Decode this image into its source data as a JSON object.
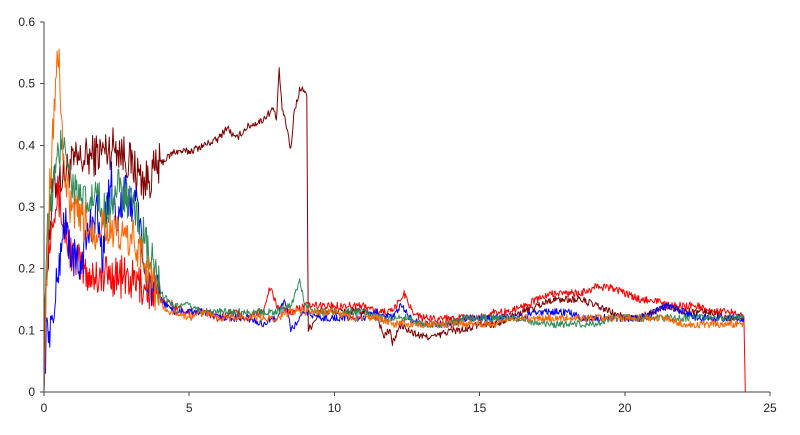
{
  "chart_data": {
    "type": "line",
    "title": "",
    "xlabel": "",
    "ylabel": "",
    "xlim": [
      0,
      25
    ],
    "ylim": [
      0,
      0.6
    ],
    "x_ticks": [
      0,
      5,
      10,
      15,
      20,
      25
    ],
    "y_ticks": [
      0,
      0.1,
      0.2,
      0.3,
      0.4,
      0.5,
      0.6
    ],
    "grid": false,
    "legend": "none",
    "series": [
      {
        "color": "#800000",
        "points": [
          [
            0,
            0.03
          ],
          [
            0.1,
            0.2
          ],
          [
            0.3,
            0.33
          ],
          [
            0.6,
            0.35
          ],
          [
            1.0,
            0.37
          ],
          [
            1.5,
            0.38
          ],
          [
            2.0,
            0.39
          ],
          [
            2.5,
            0.4
          ],
          [
            3.0,
            0.37
          ],
          [
            3.3,
            0.35
          ],
          [
            3.5,
            0.34
          ],
          [
            4.0,
            0.37
          ],
          [
            4.5,
            0.39
          ],
          [
            5.0,
            0.39
          ],
          [
            5.5,
            0.4
          ],
          [
            6.0,
            0.41
          ],
          [
            6.3,
            0.43
          ],
          [
            6.6,
            0.41
          ],
          [
            7.0,
            0.43
          ],
          [
            7.5,
            0.44
          ],
          [
            7.9,
            0.46
          ],
          [
            8.0,
            0.44
          ],
          [
            8.1,
            0.52
          ],
          [
            8.2,
            0.46
          ],
          [
            8.4,
            0.42
          ],
          [
            8.5,
            0.39
          ],
          [
            8.6,
            0.45
          ],
          [
            8.8,
            0.49
          ],
          [
            9.0,
            0.49
          ],
          [
            9.05,
            0.48
          ],
          [
            9.1,
            0.1
          ],
          [
            9.5,
            0.13
          ],
          [
            10.0,
            0.13
          ],
          [
            10.5,
            0.13
          ],
          [
            11.0,
            0.13
          ],
          [
            11.5,
            0.12
          ],
          [
            11.7,
            0.09
          ],
          [
            11.9,
            0.1
          ],
          [
            12.0,
            0.08
          ],
          [
            12.3,
            0.11
          ],
          [
            12.5,
            0.1
          ],
          [
            13.0,
            0.09
          ],
          [
            13.5,
            0.09
          ],
          [
            14.0,
            0.1
          ],
          [
            14.5,
            0.1
          ],
          [
            15.0,
            0.11
          ],
          [
            15.5,
            0.11
          ],
          [
            16.0,
            0.12
          ],
          [
            16.5,
            0.13
          ],
          [
            17.0,
            0.14
          ],
          [
            17.5,
            0.15
          ],
          [
            18.0,
            0.15
          ],
          [
            18.5,
            0.15
          ],
          [
            19.0,
            0.14
          ],
          [
            19.5,
            0.13
          ],
          [
            20.0,
            0.12
          ],
          [
            20.5,
            0.12
          ],
          [
            21.0,
            0.13
          ],
          [
            21.5,
            0.14
          ],
          [
            22.0,
            0.13
          ],
          [
            22.5,
            0.13
          ],
          [
            23.0,
            0.13
          ],
          [
            23.5,
            0.12
          ],
          [
            24.1,
            0.12
          ]
        ]
      },
      {
        "color": "#ff0000",
        "points": [
          [
            0,
            0.1
          ],
          [
            0.1,
            0.2
          ],
          [
            0.3,
            0.3
          ],
          [
            0.5,
            0.32
          ],
          [
            0.7,
            0.26
          ],
          [
            1.0,
            0.22
          ],
          [
            1.3,
            0.2
          ],
          [
            1.6,
            0.19
          ],
          [
            2.0,
            0.19
          ],
          [
            2.5,
            0.19
          ],
          [
            3.0,
            0.18
          ],
          [
            3.5,
            0.17
          ],
          [
            4.0,
            0.15
          ],
          [
            4.5,
            0.14
          ],
          [
            5.0,
            0.13
          ],
          [
            5.5,
            0.13
          ],
          [
            6.0,
            0.12
          ],
          [
            6.5,
            0.13
          ],
          [
            7.0,
            0.12
          ],
          [
            7.5,
            0.13
          ],
          [
            7.8,
            0.17
          ],
          [
            8.0,
            0.14
          ],
          [
            8.5,
            0.13
          ],
          [
            9.0,
            0.14
          ],
          [
            9.5,
            0.14
          ],
          [
            10.0,
            0.14
          ],
          [
            10.5,
            0.14
          ],
          [
            11.0,
            0.14
          ],
          [
            11.5,
            0.13
          ],
          [
            12.0,
            0.13
          ],
          [
            12.4,
            0.16
          ],
          [
            12.7,
            0.13
          ],
          [
            13.0,
            0.12
          ],
          [
            13.5,
            0.12
          ],
          [
            14.0,
            0.12
          ],
          [
            14.5,
            0.12
          ],
          [
            15.0,
            0.12
          ],
          [
            15.5,
            0.13
          ],
          [
            16.0,
            0.13
          ],
          [
            16.5,
            0.14
          ],
          [
            17.0,
            0.15
          ],
          [
            17.5,
            0.16
          ],
          [
            18.0,
            0.16
          ],
          [
            18.5,
            0.16
          ],
          [
            19.0,
            0.17
          ],
          [
            19.5,
            0.17
          ],
          [
            20.0,
            0.16
          ],
          [
            20.5,
            0.15
          ],
          [
            21.0,
            0.15
          ],
          [
            21.5,
            0.14
          ],
          [
            22.0,
            0.14
          ],
          [
            22.5,
            0.14
          ],
          [
            23.0,
            0.13
          ],
          [
            23.5,
            0.13
          ],
          [
            24.0,
            0.13
          ],
          [
            24.1,
            0.12
          ],
          [
            24.15,
            0.0
          ]
        ]
      },
      {
        "color": "#0000ff",
        "points": [
          [
            0,
            0.03
          ],
          [
            0.1,
            0.1
          ],
          [
            0.3,
            0.11
          ],
          [
            0.5,
            0.2
          ],
          [
            0.7,
            0.28
          ],
          [
            0.9,
            0.23
          ],
          [
            1.2,
            0.2
          ],
          [
            1.5,
            0.25
          ],
          [
            1.8,
            0.3
          ],
          [
            2.0,
            0.22
          ],
          [
            2.3,
            0.35
          ],
          [
            2.5,
            0.28
          ],
          [
            2.8,
            0.32
          ],
          [
            3.0,
            0.3
          ],
          [
            3.2,
            0.33
          ],
          [
            3.4,
            0.2
          ],
          [
            3.6,
            0.18
          ],
          [
            4.0,
            0.15
          ],
          [
            4.5,
            0.13
          ],
          [
            5.0,
            0.13
          ],
          [
            5.5,
            0.13
          ],
          [
            6.0,
            0.12
          ],
          [
            6.5,
            0.12
          ],
          [
            7.0,
            0.12
          ],
          [
            7.5,
            0.11
          ],
          [
            8.0,
            0.12
          ],
          [
            8.3,
            0.15
          ],
          [
            8.5,
            0.1
          ],
          [
            9.0,
            0.13
          ],
          [
            9.5,
            0.12
          ],
          [
            10.0,
            0.12
          ],
          [
            10.5,
            0.12
          ],
          [
            11.0,
            0.12
          ],
          [
            11.5,
            0.13
          ],
          [
            12.0,
            0.12
          ],
          [
            12.3,
            0.14
          ],
          [
            12.6,
            0.12
          ],
          [
            13.0,
            0.11
          ],
          [
            13.5,
            0.11
          ],
          [
            14.0,
            0.11
          ],
          [
            14.5,
            0.12
          ],
          [
            15.0,
            0.12
          ],
          [
            15.5,
            0.12
          ],
          [
            16.0,
            0.12
          ],
          [
            16.5,
            0.12
          ],
          [
            17.0,
            0.13
          ],
          [
            17.5,
            0.13
          ],
          [
            18.0,
            0.13
          ],
          [
            18.5,
            0.12
          ],
          [
            19.0,
            0.12
          ],
          [
            19.5,
            0.12
          ],
          [
            20.0,
            0.12
          ],
          [
            20.5,
            0.12
          ],
          [
            21.0,
            0.13
          ],
          [
            21.5,
            0.14
          ],
          [
            22.0,
            0.13
          ],
          [
            22.5,
            0.12
          ],
          [
            23.0,
            0.12
          ],
          [
            23.5,
            0.12
          ],
          [
            24.1,
            0.12
          ]
        ]
      },
      {
        "color": "#2e8b57",
        "points": [
          [
            0,
            0.1
          ],
          [
            0.1,
            0.25
          ],
          [
            0.3,
            0.33
          ],
          [
            0.5,
            0.38
          ],
          [
            0.7,
            0.42
          ],
          [
            0.9,
            0.35
          ],
          [
            1.2,
            0.31
          ],
          [
            1.5,
            0.3
          ],
          [
            1.8,
            0.32
          ],
          [
            2.0,
            0.29
          ],
          [
            2.3,
            0.31
          ],
          [
            2.6,
            0.33
          ],
          [
            3.0,
            0.3
          ],
          [
            3.3,
            0.27
          ],
          [
            3.6,
            0.22
          ],
          [
            3.8,
            0.2
          ],
          [
            4.0,
            0.16
          ],
          [
            4.5,
            0.14
          ],
          [
            5.0,
            0.14
          ],
          [
            5.5,
            0.13
          ],
          [
            6.0,
            0.13
          ],
          [
            6.5,
            0.13
          ],
          [
            7.0,
            0.13
          ],
          [
            7.5,
            0.13
          ],
          [
            8.0,
            0.13
          ],
          [
            8.5,
            0.14
          ],
          [
            8.8,
            0.18
          ],
          [
            9.0,
            0.14
          ],
          [
            9.5,
            0.13
          ],
          [
            10.0,
            0.13
          ],
          [
            10.5,
            0.13
          ],
          [
            11.0,
            0.13
          ],
          [
            11.5,
            0.12
          ],
          [
            12.0,
            0.12
          ],
          [
            12.5,
            0.12
          ],
          [
            13.0,
            0.11
          ],
          [
            13.5,
            0.11
          ],
          [
            14.0,
            0.11
          ],
          [
            14.5,
            0.12
          ],
          [
            15.0,
            0.12
          ],
          [
            15.5,
            0.12
          ],
          [
            16.0,
            0.12
          ],
          [
            16.5,
            0.12
          ],
          [
            17.0,
            0.11
          ],
          [
            17.5,
            0.11
          ],
          [
            18.0,
            0.11
          ],
          [
            18.5,
            0.11
          ],
          [
            19.0,
            0.11
          ],
          [
            19.5,
            0.12
          ],
          [
            20.0,
            0.12
          ],
          [
            20.5,
            0.12
          ],
          [
            21.0,
            0.12
          ],
          [
            21.5,
            0.12
          ],
          [
            22.0,
            0.12
          ],
          [
            22.5,
            0.12
          ],
          [
            23.0,
            0.12
          ],
          [
            23.5,
            0.12
          ],
          [
            24.1,
            0.12
          ]
        ]
      },
      {
        "color": "#ff6600",
        "points": [
          [
            0,
            0.0
          ],
          [
            0.05,
            0.1
          ],
          [
            0.15,
            0.3
          ],
          [
            0.3,
            0.42
          ],
          [
            0.4,
            0.5
          ],
          [
            0.5,
            0.55
          ],
          [
            0.6,
            0.45
          ],
          [
            0.7,
            0.35
          ],
          [
            0.9,
            0.3
          ],
          [
            1.2,
            0.28
          ],
          [
            1.5,
            0.27
          ],
          [
            1.8,
            0.26
          ],
          [
            2.0,
            0.28
          ],
          [
            2.3,
            0.26
          ],
          [
            2.6,
            0.25
          ],
          [
            3.0,
            0.25
          ],
          [
            3.3,
            0.23
          ],
          [
            3.6,
            0.19
          ],
          [
            3.9,
            0.16
          ],
          [
            4.2,
            0.13
          ],
          [
            4.5,
            0.13
          ],
          [
            5.0,
            0.12
          ],
          [
            5.5,
            0.13
          ],
          [
            6.0,
            0.12
          ],
          [
            6.5,
            0.12
          ],
          [
            7.0,
            0.12
          ],
          [
            7.5,
            0.12
          ],
          [
            8.0,
            0.12
          ],
          [
            8.5,
            0.13
          ],
          [
            9.0,
            0.13
          ],
          [
            9.5,
            0.13
          ],
          [
            10.0,
            0.13
          ],
          [
            10.5,
            0.12
          ],
          [
            11.0,
            0.12
          ],
          [
            11.5,
            0.12
          ],
          [
            12.0,
            0.11
          ],
          [
            12.5,
            0.11
          ],
          [
            13.0,
            0.11
          ],
          [
            13.5,
            0.11
          ],
          [
            14.0,
            0.11
          ],
          [
            14.5,
            0.11
          ],
          [
            15.0,
            0.11
          ],
          [
            15.5,
            0.11
          ],
          [
            16.0,
            0.12
          ],
          [
            16.5,
            0.12
          ],
          [
            17.0,
            0.12
          ],
          [
            17.5,
            0.12
          ],
          [
            18.0,
            0.12
          ],
          [
            18.5,
            0.12
          ],
          [
            19.0,
            0.12
          ],
          [
            19.5,
            0.12
          ],
          [
            20.0,
            0.12
          ],
          [
            20.5,
            0.12
          ],
          [
            21.0,
            0.12
          ],
          [
            21.5,
            0.12
          ],
          [
            22.0,
            0.11
          ],
          [
            22.5,
            0.11
          ],
          [
            23.0,
            0.11
          ],
          [
            23.5,
            0.11
          ],
          [
            24.1,
            0.11
          ]
        ]
      }
    ]
  }
}
